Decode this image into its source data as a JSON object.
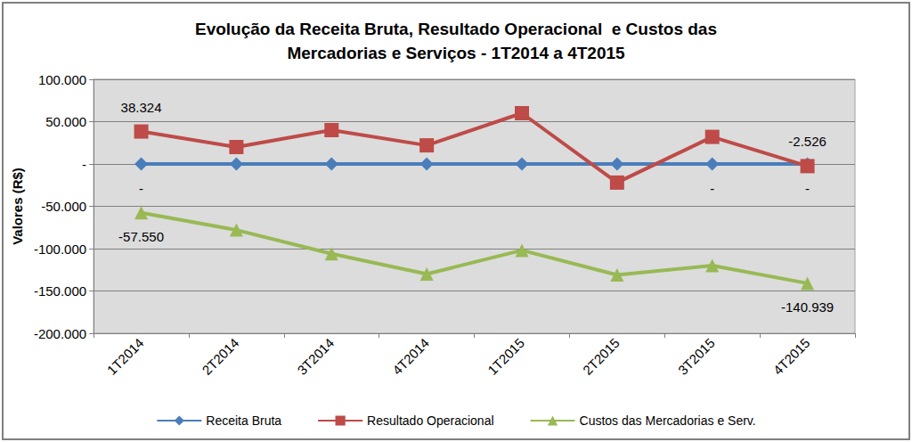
{
  "chart_data": {
    "type": "line",
    "title": "Evolução da Receita Bruta, Resultado Operacional  e Custos das\nMercadorias e Serviços - 1T2014 a 4T2015",
    "y_label": "Valores (R$)",
    "categories": [
      "1T2014",
      "2T2014",
      "3T2014",
      "4T2014",
      "1T2015",
      "2T2015",
      "3T2015",
      "4T2015"
    ],
    "series": [
      {
        "name": "Receita Bruta",
        "color": "#4a7ebb",
        "marker": "diamond",
        "values": [
          0,
          0,
          0,
          0,
          0,
          0,
          0,
          0
        ],
        "value_labels": [
          "-",
          null,
          null,
          null,
          null,
          null,
          "-",
          "-"
        ]
      },
      {
        "name": "Resultado Operacional",
        "color": "#be4b48",
        "marker": "square",
        "values": [
          38324,
          20000,
          40000,
          22000,
          60000,
          -22000,
          32000,
          -2526
        ],
        "value_labels": [
          "38.324",
          null,
          null,
          null,
          null,
          null,
          null,
          "-2.526"
        ]
      },
      {
        "name": "Custos das Mercadorias e Serv.",
        "color": "#98b954",
        "marker": "triangle",
        "values": [
          -57550,
          -78000,
          -106000,
          -130000,
          -102000,
          -131000,
          -120000,
          -140939
        ],
        "value_labels": [
          "-57.550",
          null,
          null,
          null,
          null,
          null,
          null,
          "-140.939"
        ]
      }
    ],
    "ylim": [
      -200000,
      100000
    ],
    "yticks": [
      {
        "value": -200000,
        "label": "-200.000"
      },
      {
        "value": -150000,
        "label": "-150.000"
      },
      {
        "value": -100000,
        "label": "-100.000"
      },
      {
        "value": -50000,
        "label": "-50.000"
      },
      {
        "value": 0,
        "label": "-"
      },
      {
        "value": 50000,
        "label": "50.000"
      },
      {
        "value": 100000,
        "label": "100.000"
      }
    ],
    "grid": true,
    "legend": "bottom",
    "data_labels": true
  }
}
